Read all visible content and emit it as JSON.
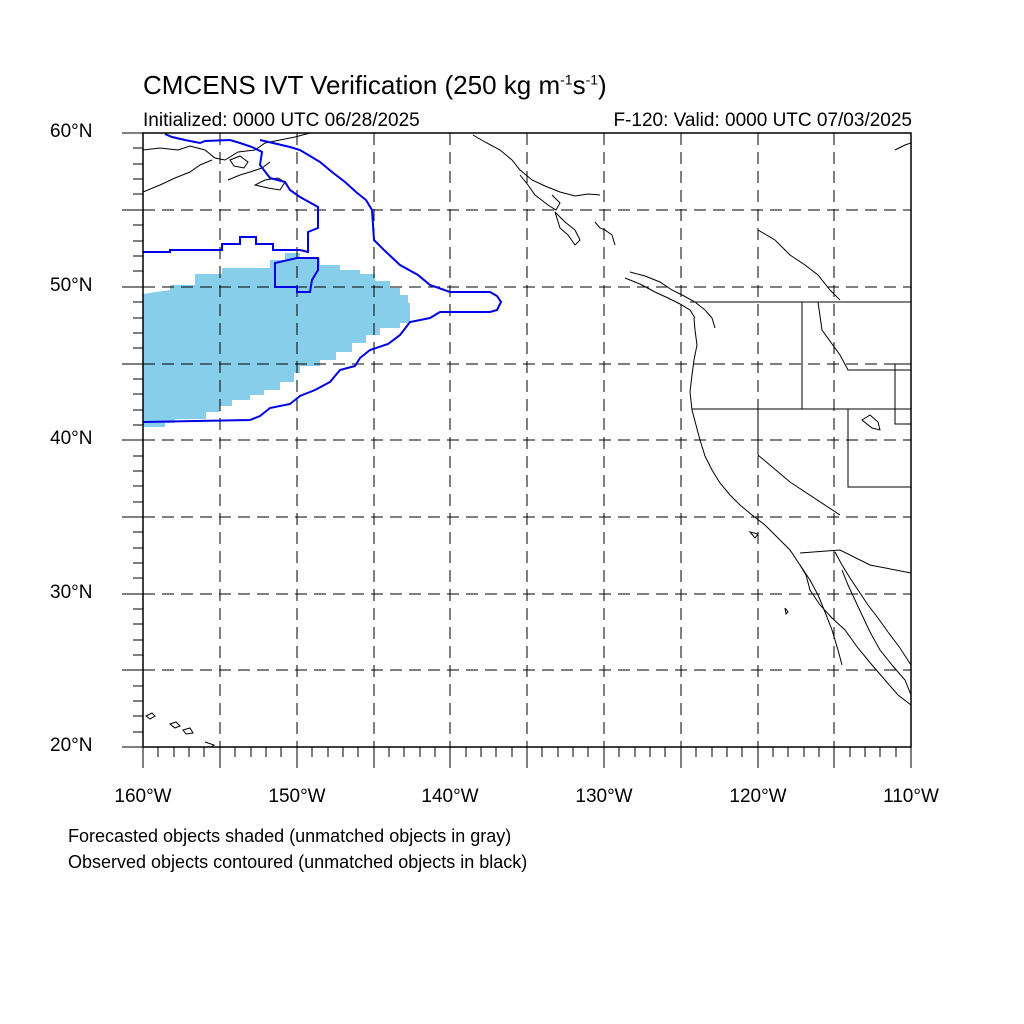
{
  "title": {
    "prefix": "CMCENS IVT Verification (250 kg m",
    "sup1": "-1",
    "mid": "s",
    "sup2": "-1",
    "suffix": ")"
  },
  "subtitle_left": "Initialized: 0000 UTC 06/28/2025",
  "subtitle_right": "F-120: Valid: 0000 UTC 07/03/2025",
  "lat_labels": [
    "60°N",
    "50°N",
    "40°N",
    "30°N",
    "20°N"
  ],
  "lon_labels": [
    "160°W",
    "150°W",
    "140°W",
    "130°W",
    "120°W",
    "110°W"
  ],
  "notes": [
    "Forecasted objects shaded (unmatched objects in gray)",
    "Observed objects contoured (unmatched objects in black)"
  ],
  "colors": {
    "forecast_fill": "#87ceeb",
    "observed_contour": "#0000e6",
    "coastline": "#000000",
    "grid": "#000000"
  }
}
